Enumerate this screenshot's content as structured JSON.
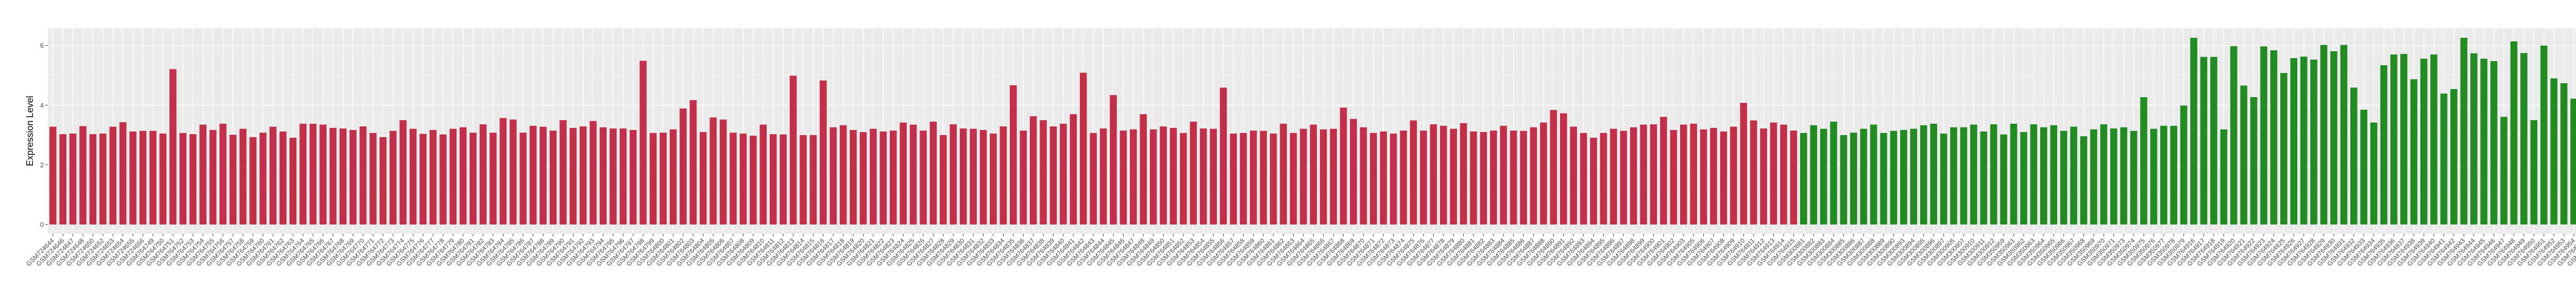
{
  "chart_data": {
    "type": "bar",
    "title": "",
    "xlabel": "",
    "ylabel": "Expression Level",
    "ylim": [
      -0.31,
      6.58
    ],
    "yticks": [
      0,
      2,
      4,
      6
    ],
    "ytick_labels": [
      "0",
      "2",
      "4",
      "6"
    ],
    "grid": true,
    "legend": "none",
    "panel_background": "#EBEBEB",
    "series": [
      {
        "color": "#C3304A",
        "categories": [
          "GSM724644",
          "GSM724646",
          "GSM724647",
          "GSM724648",
          "GSM724650",
          "GSM724652",
          "GSM724653",
          "GSM724654",
          "GSM724655",
          "GSM724656",
          "GSM764749",
          "GSM764750",
          "GSM764751",
          "GSM764752",
          "GSM764753",
          "GSM764754",
          "GSM764755",
          "GSM764756",
          "GSM764757",
          "GSM764758",
          "GSM764759",
          "GSM764760",
          "GSM764761",
          "GSM764762",
          "GSM764763",
          "GSM764764",
          "GSM764765",
          "GSM764766",
          "GSM764767",
          "GSM764768",
          "GSM764769",
          "GSM764770",
          "GSM764771",
          "GSM764772",
          "GSM764773",
          "GSM764774",
          "GSM764775",
          "GSM764776",
          "GSM764777",
          "GSM764778",
          "GSM764779",
          "GSM764780",
          "GSM764781",
          "GSM764782",
          "GSM764783",
          "GSM764784",
          "GSM764785",
          "GSM764786",
          "GSM764787",
          "GSM764788",
          "GSM764789",
          "GSM764790",
          "GSM764791",
          "GSM764792",
          "GSM764793",
          "GSM764794",
          "GSM764795",
          "GSM764796",
          "GSM764797",
          "GSM764798",
          "GSM764799",
          "GSM764800",
          "GSM764801",
          "GSM764802",
          "GSM764803",
          "GSM764804",
          "GSM764805",
          "GSM764806",
          "GSM764807",
          "GSM764808",
          "GSM764809",
          "GSM764810",
          "GSM764811",
          "GSM764812",
          "GSM764813",
          "GSM764814",
          "GSM764815",
          "GSM764816",
          "GSM764817",
          "GSM764818",
          "GSM764819",
          "GSM764820",
          "GSM764821",
          "GSM764822",
          "GSM764823",
          "GSM764824",
          "GSM764825",
          "GSM764826",
          "GSM764827",
          "GSM764828",
          "GSM764829",
          "GSM764830",
          "GSM764831",
          "GSM764832",
          "GSM764833",
          "GSM764834",
          "GSM764835",
          "GSM764836",
          "GSM764837",
          "GSM764838",
          "GSM764839",
          "GSM764840",
          "GSM764841",
          "GSM764842",
          "GSM764843",
          "GSM764844",
          "GSM764845",
          "GSM764846",
          "GSM764847",
          "GSM764848",
          "GSM764849",
          "GSM764850",
          "GSM764851",
          "GSM764852",
          "GSM764853",
          "GSM764854",
          "GSM764855",
          "GSM764856",
          "GSM764857",
          "GSM764858",
          "GSM764859",
          "GSM764860",
          "GSM764861",
          "GSM764862",
          "GSM764863",
          "GSM764864",
          "GSM764865",
          "GSM764866",
          "GSM764867",
          "GSM764868",
          "GSM764869",
          "GSM764870",
          "GSM764871",
          "GSM764872",
          "GSM764873",
          "GSM764874",
          "GSM764875",
          "GSM764876",
          "GSM764877",
          "GSM764878",
          "GSM764879",
          "GSM764880",
          "GSM764881",
          "GSM764882",
          "GSM764883",
          "GSM764884",
          "GSM764885",
          "GSM764886",
          "GSM764887",
          "GSM764888",
          "GSM764890",
          "GSM764891",
          "GSM764892",
          "GSM764893",
          "GSM764894",
          "GSM764895",
          "GSM764896",
          "GSM764897",
          "GSM764898",
          "GSM764899",
          "GSM764900",
          "GSM764901",
          "GSM764902",
          "GSM764903",
          "GSM764905",
          "GSM764906",
          "GSM764907",
          "GSM764908",
          "GSM764909",
          "GSM764910",
          "GSM764911",
          "GSM764912",
          "GSM764913",
          "GSM764914",
          "GSM764915"
        ],
        "values": [
          3.28,
          3.03,
          3.05,
          3.3,
          3.03,
          3.05,
          3.28,
          3.43,
          3.12,
          3.14,
          3.14,
          3.05,
          5.21,
          3.07,
          3.03,
          3.35,
          3.17,
          3.38,
          3.01,
          3.21,
          2.93,
          3.08,
          3.28,
          3.12,
          2.91,
          3.38,
          3.38,
          3.35,
          3.24,
          3.22,
          3.17,
          3.29,
          3.07,
          2.93,
          3.14,
          3.5,
          3.21,
          3.04,
          3.17,
          3.02,
          3.21,
          3.26,
          3.08,
          3.36,
          3.08,
          3.57,
          3.52,
          3.08,
          3.31,
          3.28,
          3.15,
          3.5,
          3.24,
          3.29,
          3.47,
          3.26,
          3.22,
          3.22,
          3.17,
          5.49,
          3.07,
          3.08,
          3.19,
          3.89,
          4.17,
          3.1,
          3.59,
          3.52,
          3.08,
          3.05,
          2.98,
          3.35,
          3.03,
          3.02,
          4.99,
          3.0,
          3.0,
          4.83,
          3.26,
          3.33,
          3.17,
          3.1,
          3.21,
          3.12,
          3.15,
          3.42,
          3.35,
          3.15,
          3.45,
          3.0,
          3.36,
          3.22,
          3.21,
          3.17,
          3.05,
          3.29,
          4.67,
          3.15,
          3.63,
          3.5,
          3.29,
          3.38,
          3.7,
          5.09,
          3.07,
          3.22,
          4.34,
          3.15,
          3.19,
          3.7,
          3.19,
          3.29,
          3.24,
          3.07,
          3.45,
          3.22,
          3.21,
          4.59,
          3.05,
          3.07,
          3.15,
          3.14,
          3.05,
          3.38,
          3.07,
          3.21,
          3.35,
          3.19,
          3.21,
          3.92,
          3.54,
          3.26,
          3.07,
          3.12,
          3.05,
          3.15,
          3.49,
          3.15,
          3.36,
          3.31,
          3.21,
          3.4,
          3.12,
          3.1,
          3.15,
          3.31,
          3.15,
          3.14,
          3.26,
          3.42,
          3.84,
          3.73,
          3.28,
          3.07,
          2.91,
          3.07,
          3.21,
          3.14,
          3.26,
          3.35,
          3.36,
          3.61,
          3.17,
          3.35,
          3.38,
          3.19,
          3.24,
          3.12,
          3.28,
          4.08,
          3.49,
          3.22,
          3.42,
          3.35,
          3.15
        ]
      },
      {
        "color": "#228B22",
        "categories": [
          "GSM300881",
          "GSM300882",
          "GSM300883",
          "GSM300884",
          "GSM300885",
          "GSM300886",
          "GSM300887",
          "GSM300888",
          "GSM300889",
          "GSM300890",
          "GSM300893",
          "GSM300894",
          "GSM300895",
          "GSM300896",
          "GSM300897",
          "GSM300905",
          "GSM300907",
          "GSM300910",
          "GSM300911",
          "GSM300912",
          "GSM350959",
          "GSM350961",
          "GSM350962",
          "GSM350963",
          "GSM350964",
          "GSM350965",
          "GSM350966",
          "GSM350967",
          "GSM350968",
          "GSM350969",
          "GSM350970",
          "GSM350971",
          "GSM350973",
          "GSM350974",
          "GSM350975",
          "GSM350976",
          "GSM350977",
          "GSM350978",
          "GSM350979",
          "GSM764916",
          "GSM764917",
          "GSM764918",
          "GSM764919",
          "GSM764920",
          "GSM764921",
          "GSM764922",
          "GSM764923",
          "GSM764924",
          "GSM764925",
          "GSM764926",
          "GSM764927",
          "GSM764928",
          "GSM764929",
          "GSM764930",
          "GSM764931",
          "GSM764932",
          "GSM764933",
          "GSM764934",
          "GSM764935",
          "GSM764936",
          "GSM764937",
          "GSM764938",
          "GSM764939",
          "GSM764940",
          "GSM764941",
          "GSM764942",
          "GSM764943",
          "GSM764944",
          "GSM764945",
          "GSM764946",
          "GSM764947",
          "GSM764948",
          "GSM764949",
          "GSM764950",
          "GSM764951",
          "GSM764952",
          "GSM764953",
          "GSM764954",
          "GSM764955",
          "GSM764956",
          "GSM764957",
          "GSM764958",
          "GSM764959",
          "GSM764960",
          "GSM80748",
          "GSM80749"
        ],
        "values": [
          3.07,
          3.33,
          3.21,
          3.45,
          3.0,
          3.08,
          3.21,
          3.35,
          3.07,
          3.14,
          3.17,
          3.21,
          3.33,
          3.38,
          3.05,
          3.26,
          3.26,
          3.35,
          3.12,
          3.36,
          3.02,
          3.38,
          3.1,
          3.36,
          3.26,
          3.33,
          3.14,
          3.28,
          2.96,
          3.19,
          3.36,
          3.22,
          3.26,
          3.14,
          4.27,
          3.21,
          3.31,
          3.31,
          3.99,
          6.26,
          5.62,
          5.62,
          3.19,
          5.98,
          4.66,
          4.27,
          5.97,
          5.84,
          5.08,
          5.58,
          5.63,
          5.53,
          6.02,
          5.81,
          6.02,
          4.59,
          3.85,
          3.42,
          5.34,
          5.7,
          5.72,
          4.87,
          5.56,
          5.7,
          4.39,
          4.54,
          6.26,
          5.74,
          5.56,
          5.48,
          3.61,
          6.14,
          5.75,
          3.5,
          6.0,
          4.9,
          4.74,
          4.22,
          3.35,
          5.74,
          3.59,
          4.71,
          5.54,
          4.43,
          4.66,
          4.77
        ]
      }
    ]
  }
}
